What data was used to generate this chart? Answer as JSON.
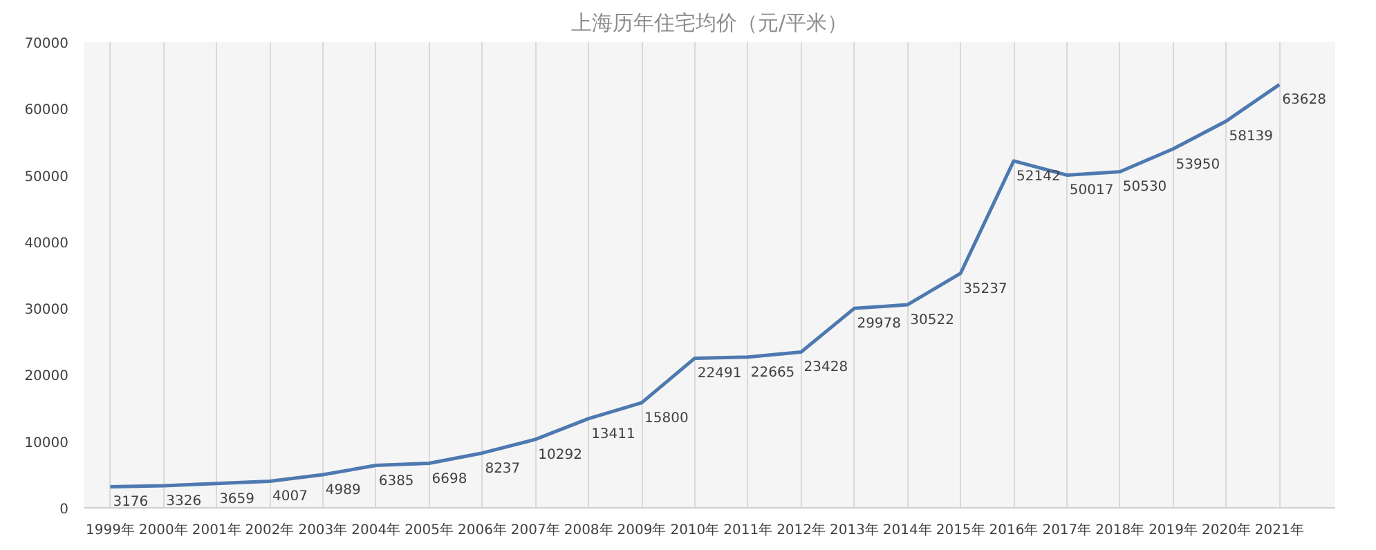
{
  "chart_data": {
    "type": "line",
    "title": "上海历年住宅均价（元/平米）",
    "categories": [
      "1999年",
      "2000年",
      "2001年",
      "2002年",
      "2003年",
      "2004年",
      "2005年",
      "2006年",
      "2007年",
      "2008年",
      "2009年",
      "2010年",
      "2011年",
      "2012年",
      "2013年",
      "2014年",
      "2015年",
      "2016年",
      "2017年",
      "2018年",
      "2019年",
      "2020年",
      "2021年"
    ],
    "series": [
      {
        "color": "#4e79b0",
        "values": [
          3176,
          3326,
          3659,
          4007,
          4989,
          6385,
          6698,
          8237,
          10292,
          13411,
          15800,
          22491,
          22665,
          23428,
          29978,
          30522,
          35237,
          52142,
          50017,
          50530,
          53950,
          58139,
          63628
        ]
      }
    ],
    "ylim": [
      0,
      70000
    ],
    "yticks": [
      0,
      10000,
      20000,
      30000,
      40000,
      50000,
      60000,
      70000
    ],
    "grid": "x",
    "data_labels": true,
    "marker": "none",
    "line_style": "solid"
  }
}
